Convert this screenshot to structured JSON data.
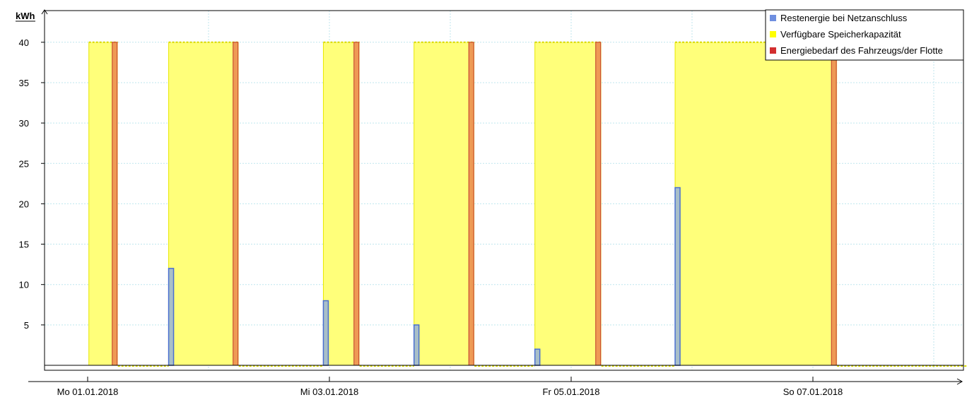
{
  "chart_data": {
    "type": "bar",
    "unit_label": "kWh",
    "ylim": [
      0,
      40
    ],
    "y_ticks": [
      5,
      10,
      15,
      20,
      25,
      30,
      35,
      40
    ],
    "x_range_days": [
      0,
      7.5
    ],
    "x_tick_labels": [
      "Mo 01.01.2018",
      "Mi 03.01.2018",
      "Fr 05.01.2018",
      "So 07.01.2018"
    ],
    "x_tick_days": [
      0,
      2,
      4,
      6
    ],
    "grid": true,
    "legend_position": "top-right",
    "colors": {
      "storage": "#ffff7a",
      "storage_edge": "#e8e800",
      "residual_fill": "#a9bfc8",
      "residual_edge": "#4a6fd0",
      "demand_fill": "#ee9a55",
      "demand_edge": "#c0392b",
      "grid": "#bfe6ee"
    },
    "legend": [
      {
        "label": "Restenergie bei Netzanschluss",
        "color": "#6f8fe0"
      },
      {
        "label": "Verfügbare Speicherkapazität",
        "color": "#ffff00"
      },
      {
        "label": "Energiebedarf des Fahrzeugs/der Flotte",
        "color": "#d32f2f"
      }
    ],
    "series": [
      {
        "name": "Verfügbare Speicherkapazität",
        "kind": "area",
        "intervals": [
          {
            "start": 0.01,
            "end": 0.25,
            "value": 40
          },
          {
            "start": 0.67,
            "end": 1.25,
            "value": 40
          },
          {
            "start": 1.95,
            "end": 2.25,
            "value": 40
          },
          {
            "start": 2.7,
            "end": 3.2,
            "value": 40
          },
          {
            "start": 3.7,
            "end": 4.25,
            "value": 40
          },
          {
            "start": 4.86,
            "end": 6.2,
            "value": 40
          }
        ]
      },
      {
        "name": "Restenergie bei Netzanschluss",
        "kind": "bar",
        "points": [
          {
            "x": 0.67,
            "value": 12
          },
          {
            "x": 1.95,
            "value": 8
          },
          {
            "x": 2.7,
            "value": 5
          },
          {
            "x": 3.7,
            "value": 2
          },
          {
            "x": 4.86,
            "value": 22
          }
        ]
      },
      {
        "name": "Energiebedarf des Fahrzeugs/der Flotte",
        "kind": "bar",
        "points": [
          {
            "x": 0.25,
            "value": 40
          },
          {
            "x": 1.25,
            "value": 40
          },
          {
            "x": 2.25,
            "value": 40
          },
          {
            "x": 3.2,
            "value": 40
          },
          {
            "x": 4.25,
            "value": 40
          },
          {
            "x": 6.2,
            "value": 40
          }
        ]
      }
    ]
  }
}
